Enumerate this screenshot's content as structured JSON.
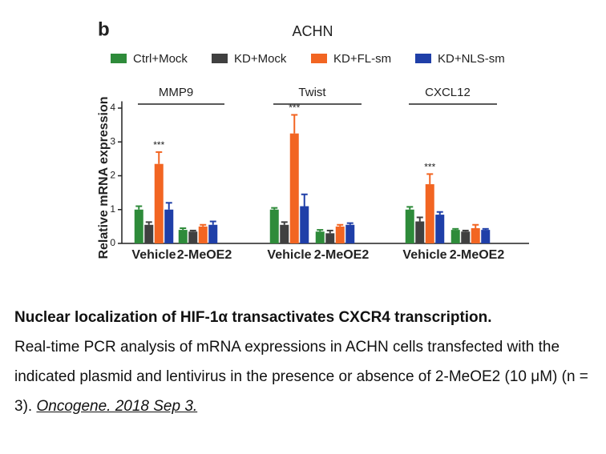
{
  "chart_data": {
    "type": "bar",
    "panel_label": "b",
    "title": "ACHN",
    "y_label": "Relative mRNA expression",
    "ylim": [
      0,
      4.2
    ],
    "yticks": [
      0,
      1,
      2,
      3,
      4
    ],
    "series": [
      {
        "name": "Ctrl+Mock",
        "color": "#2e8b3a"
      },
      {
        "name": "KD+Mock",
        "color": "#404040"
      },
      {
        "name": "KD+FL-sm",
        "color": "#f26522"
      },
      {
        "name": "KD+NLS-sm",
        "color": "#1f3fa8"
      }
    ],
    "panels": [
      {
        "title": "MMP9",
        "categories": [
          "Vehicle",
          "2-MeOE2"
        ],
        "annotation": "***",
        "series": [
          {
            "values": [
              1.0,
              0.4
            ],
            "errors": [
              0.1,
              0.05
            ]
          },
          {
            "values": [
              0.55,
              0.35
            ],
            "errors": [
              0.08,
              0.03
            ]
          },
          {
            "values": [
              2.35,
              0.5
            ],
            "errors": [
              0.35,
              0.05
            ]
          },
          {
            "values": [
              1.0,
              0.55
            ],
            "errors": [
              0.2,
              0.1
            ]
          }
        ]
      },
      {
        "title": "Twist",
        "categories": [
          "Vehicle",
          "2-MeOE2"
        ],
        "annotation": "***",
        "series": [
          {
            "values": [
              1.0,
              0.35
            ],
            "errors": [
              0.05,
              0.05
            ]
          },
          {
            "values": [
              0.55,
              0.3
            ],
            "errors": [
              0.08,
              0.08
            ]
          },
          {
            "values": [
              3.25,
              0.5
            ],
            "errors": [
              0.55,
              0.05
            ]
          },
          {
            "values": [
              1.1,
              0.55
            ],
            "errors": [
              0.35,
              0.05
            ]
          }
        ]
      },
      {
        "title": "CXCL12",
        "categories": [
          "Vehicle",
          "2-MeOE2"
        ],
        "annotation": "***",
        "series": [
          {
            "values": [
              1.0,
              0.4
            ],
            "errors": [
              0.08,
              0.03
            ]
          },
          {
            "values": [
              0.65,
              0.35
            ],
            "errors": [
              0.12,
              0.03
            ]
          },
          {
            "values": [
              1.75,
              0.45
            ],
            "errors": [
              0.3,
              0.1
            ]
          },
          {
            "values": [
              0.85,
              0.4
            ],
            "errors": [
              0.08,
              0.03
            ]
          }
        ]
      }
    ]
  },
  "caption": {
    "title": "Nuclear localization of HIF-1α transactivates CXCR4 transcription.",
    "text": "Real-time PCR analysis of mRNA expressions in ACHN cells transfected with the indicated plasmid and lentivirus in the presence or absence of 2-MeOE2 (10 μM) (n = 3).",
    "citation": "Oncogene. 2018 Sep 3."
  }
}
